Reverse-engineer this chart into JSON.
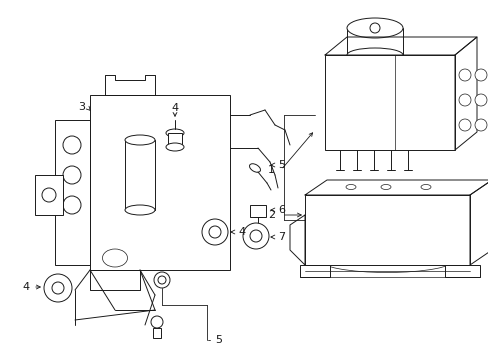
{
  "bg_color": "#ffffff",
  "line_color": "#1a1a1a",
  "fig_width": 4.89,
  "fig_height": 3.6,
  "dpi": 100,
  "label_fs": 8,
  "lw_main": 0.7,
  "lw_thin": 0.5
}
